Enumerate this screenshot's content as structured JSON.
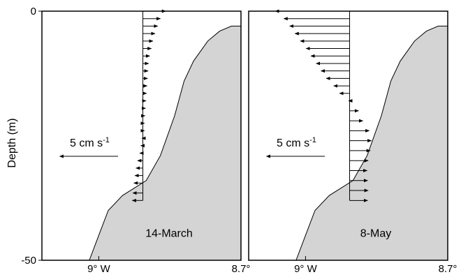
{
  "y_axis_label": "Depth (m)",
  "chart_data": [
    {
      "type": "quiver",
      "panel_label": "14-March",
      "scale_label": {
        "text": "5 cm s",
        "sup": "-1",
        "value": -5
      },
      "xlim": [
        9.12,
        8.7
      ],
      "ylim": [
        0,
        -50
      ],
      "x_ticks": [
        {
          "value": 9.0,
          "label": "9° W"
        },
        {
          "value": 8.7,
          "label": "8.7°"
        }
      ],
      "y_ticks": [
        {
          "value": 0,
          "label": "0"
        },
        {
          "value": -50,
          "label": "-50"
        }
      ],
      "profile_x": 8.907,
      "arrows": [
        {
          "depth": 0,
          "u": 4.3
        },
        {
          "depth": -1.5,
          "u": 3.3
        },
        {
          "depth": -3.0,
          "u": 2.8
        },
        {
          "depth": -4.5,
          "u": 2.3
        },
        {
          "depth": -6.0,
          "u": 1.9
        },
        {
          "depth": -7.5,
          "u": 1.6
        },
        {
          "depth": -9.0,
          "u": 1.3
        },
        {
          "depth": -10.5,
          "u": 1.1
        },
        {
          "depth": -12.0,
          "u": 1.0
        },
        {
          "depth": -13.5,
          "u": 0.9
        },
        {
          "depth": -15.0,
          "u": 0.8
        },
        {
          "depth": -16.5,
          "u": 0.7
        },
        {
          "depth": -18.0,
          "u": 0.6
        },
        {
          "depth": -19.5,
          "u": 0.5
        },
        {
          "depth": -21.0,
          "u": 0.4
        },
        {
          "depth": -22.5,
          "u": 0.3
        },
        {
          "depth": -24.0,
          "u": 0.3
        },
        {
          "depth": -25.5,
          "u": -0.2
        },
        {
          "depth": -27.0,
          "u": -0.4
        },
        {
          "depth": -28.5,
          "u": -0.6
        },
        {
          "depth": -30.0,
          "u": -1.0
        },
        {
          "depth": -31.5,
          "u": -1.3
        },
        {
          "depth": -33.0,
          "u": -1.5
        },
        {
          "depth": -34.5,
          "u": -1.7
        },
        {
          "depth": -36.5,
          "u": -1.9
        },
        {
          "depth": -38.0,
          "u": -2.0
        }
      ],
      "bathymetry": [
        [
          9.02,
          -50
        ],
        [
          9.0,
          -45
        ],
        [
          8.98,
          -40
        ],
        [
          8.95,
          -37
        ],
        [
          8.9,
          -34
        ],
        [
          8.87,
          -29
        ],
        [
          8.84,
          -21
        ],
        [
          8.82,
          -14
        ],
        [
          8.8,
          -10
        ],
        [
          8.77,
          -6
        ],
        [
          8.745,
          -4
        ],
        [
          8.72,
          -3
        ],
        [
          8.7,
          -3
        ],
        [
          8.7,
          -50
        ]
      ]
    },
    {
      "type": "quiver",
      "panel_label": "8-May",
      "scale_label": {
        "text": "5 cm s",
        "sup": "-1",
        "value": -5
      },
      "xlim": [
        9.12,
        8.7
      ],
      "ylim": [
        0,
        -50
      ],
      "x_ticks": [
        {
          "value": 9.0,
          "label": "9° W"
        },
        {
          "value": 8.7,
          "label": "8.7°"
        }
      ],
      "y_ticks": [],
      "profile_x": 8.907,
      "arrows": [
        {
          "depth": 0,
          "u": -14.0
        },
        {
          "depth": -1.5,
          "u": -12.4
        },
        {
          "depth": -3.0,
          "u": -11.3
        },
        {
          "depth": -4.5,
          "u": -10.3
        },
        {
          "depth": -6.0,
          "u": -9.3
        },
        {
          "depth": -7.5,
          "u": -8.2
        },
        {
          "depth": -9.0,
          "u": -7.3
        },
        {
          "depth": -10.5,
          "u": -6.3
        },
        {
          "depth": -12.0,
          "u": -5.4
        },
        {
          "depth": -13.5,
          "u": -4.4
        },
        {
          "depth": -15.0,
          "u": -3.0
        },
        {
          "depth": -16.5,
          "u": -1.9
        },
        {
          "depth": -18.0,
          "u": -0.2
        },
        {
          "depth": -20.0,
          "u": 1.7
        },
        {
          "depth": -22.0,
          "u": 2.5
        },
        {
          "depth": -24.0,
          "u": 3.7
        },
        {
          "depth": -26.0,
          "u": 4.1
        },
        {
          "depth": -28.0,
          "u": 3.9
        },
        {
          "depth": -30.0,
          "u": 3.5
        },
        {
          "depth": -32.0,
          "u": 3.3
        },
        {
          "depth": -34.0,
          "u": 3.4
        },
        {
          "depth": -36.0,
          "u": 3.5
        },
        {
          "depth": -38.0,
          "u": 3.4
        }
      ],
      "bathymetry": [
        [
          9.02,
          -50
        ],
        [
          9.0,
          -45
        ],
        [
          8.98,
          -40
        ],
        [
          8.95,
          -37
        ],
        [
          8.9,
          -34
        ],
        [
          8.87,
          -29
        ],
        [
          8.84,
          -21
        ],
        [
          8.82,
          -14
        ],
        [
          8.8,
          -10
        ],
        [
          8.77,
          -6
        ],
        [
          8.745,
          -4
        ],
        [
          8.72,
          -3
        ],
        [
          8.7,
          -3
        ],
        [
          8.7,
          -50
        ]
      ]
    }
  ]
}
